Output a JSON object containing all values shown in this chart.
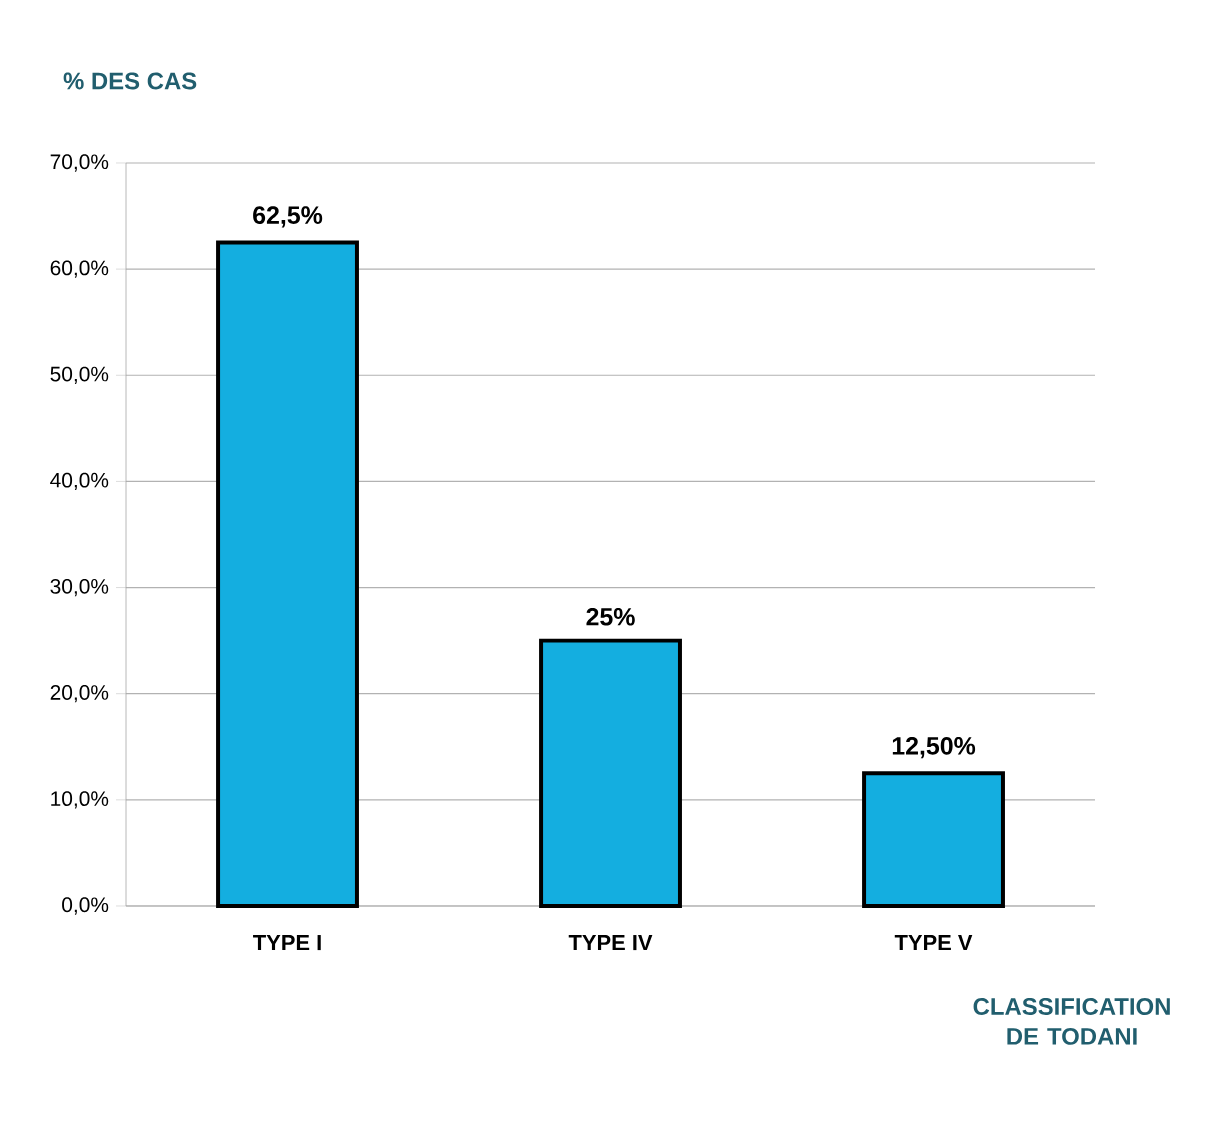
{
  "chart_data": {
    "type": "bar",
    "ylabel": "% DES CAS",
    "xlabel": "CLASSIFICATION DE TODANI",
    "categories": [
      "TYPE I",
      "TYPE IV",
      "TYPE V"
    ],
    "values": [
      62.5,
      25,
      12.5
    ],
    "value_labels": [
      "62,5%",
      "25%",
      "12,50%"
    ],
    "color": "#14aee0",
    "ylim": [
      0,
      70
    ],
    "yticks": [
      {
        "value": 0,
        "label": "0,0%"
      },
      {
        "value": 10,
        "label": "10,0%"
      },
      {
        "value": 20,
        "label": "20,0%"
      },
      {
        "value": 30,
        "label": "30,0%"
      },
      {
        "value": 40,
        "label": "40,0%"
      },
      {
        "value": 50,
        "label": "50,0%"
      },
      {
        "value": 60,
        "label": "60,0%"
      },
      {
        "value": 70,
        "label": "70,0%"
      }
    ],
    "grid": "y"
  }
}
